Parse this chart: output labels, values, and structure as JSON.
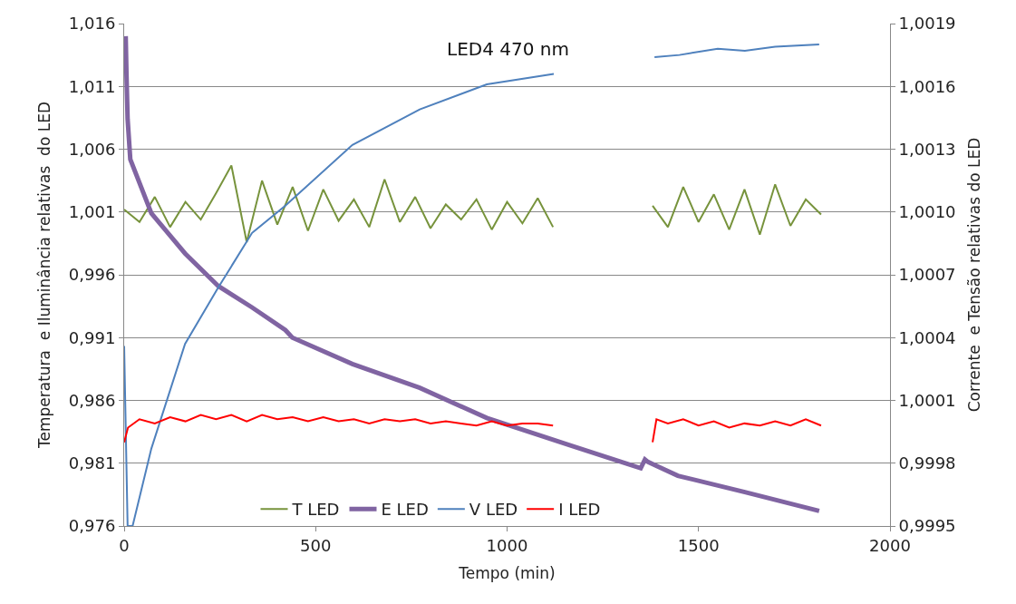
{
  "chart_data": {
    "type": "line",
    "title": "LED4 470 nm",
    "xlabel": "Tempo (min)",
    "ylabel": "Temperatura  e Iluminância relativas  do LED",
    "y2label": "Corrente  e Tensão relativas do LED",
    "xlim": [
      0,
      2000
    ],
    "xticks": [
      0,
      500,
      1000,
      1500,
      2000
    ],
    "ylim": [
      0.976,
      1.016
    ],
    "yticks": [
      {
        "value": 0.976,
        "label": "0,976"
      },
      {
        "value": 0.981,
        "label": "0,981"
      },
      {
        "value": 0.986,
        "label": "0,986"
      },
      {
        "value": 0.991,
        "label": "0,991"
      },
      {
        "value": 0.996,
        "label": "0,996"
      },
      {
        "value": 1.001,
        "label": "1,001"
      },
      {
        "value": 1.006,
        "label": "1,006"
      },
      {
        "value": 1.011,
        "label": "1,011"
      },
      {
        "value": 1.016,
        "label": "1,016"
      }
    ],
    "y2lim": [
      0.9995,
      1.0019
    ],
    "y2ticks": [
      {
        "value": 0.9995,
        "label": "0,9995"
      },
      {
        "value": 0.9998,
        "label": "0,9998"
      },
      {
        "value": 1.0001,
        "label": "1,0001"
      },
      {
        "value": 1.0004,
        "label": "1,0004"
      },
      {
        "value": 1.0007,
        "label": "1,0007"
      },
      {
        "value": 1.001,
        "label": "1,0010"
      },
      {
        "value": 1.0013,
        "label": "1,0013"
      },
      {
        "value": 1.0016,
        "label": "1,0016"
      },
      {
        "value": 1.0019,
        "label": "1,0019"
      }
    ],
    "grid": "y",
    "legend": "bottom",
    "marker": "none",
    "line_style": "solid",
    "series": [
      {
        "name": "T LED",
        "color": "#77933c",
        "x": [
          0,
          40,
          80,
          120,
          160,
          200,
          240,
          280,
          320,
          360,
          400,
          440,
          480,
          520,
          560,
          600,
          640,
          680,
          720,
          760,
          800,
          840,
          880,
          920,
          960,
          1000,
          1040,
          1080,
          1120,
          1250,
          1380,
          1420,
          1460,
          1500,
          1540,
          1580,
          1620,
          1660,
          1700,
          1740,
          1780,
          1820
        ],
        "values": [
          1.0012,
          1.0002,
          1.0022,
          0.9998,
          1.0018,
          1.0004,
          1.0025,
          1.0047,
          0.9986,
          1.0035,
          1.0,
          1.003,
          0.9995,
          1.0028,
          1.0003,
          1.002,
          0.9998,
          1.0036,
          1.0002,
          1.0022,
          0.9997,
          1.0016,
          1.0004,
          1.002,
          0.9996,
          1.0018,
          1.0001,
          1.0021,
          0.9998,
          null,
          1.0015,
          0.9998,
          1.003,
          1.0002,
          1.0024,
          0.9996,
          1.0028,
          0.9992,
          1.0032,
          0.9999,
          1.002,
          1.0008
        ]
      },
      {
        "name": "E LED",
        "color": "#8064a2",
        "x": [
          4,
          6,
          9,
          16,
          71,
          159,
          246,
          334,
          421,
          439,
          596,
          772,
          947,
          1167,
          1349,
          1360,
          1368,
          1446,
          1621,
          1815
        ],
        "values": [
          1.015,
          1.012,
          1.0084,
          1.0052,
          1.0009,
          0.9977,
          0.9951,
          0.9934,
          0.9916,
          0.991,
          0.9889,
          0.987,
          0.9846,
          0.9824,
          0.9806,
          0.9813,
          0.9811,
          0.98,
          0.9787,
          0.9772
        ]
      },
      {
        "name": "V LED",
        "color": "#4f81bd",
        "axis": "y2",
        "x": [
          0,
          9,
          22,
          71,
          159,
          246,
          334,
          421,
          596,
          772,
          947,
          1122,
          1250,
          1385,
          1450,
          1550,
          1621,
          1700,
          1815
        ],
        "values": [
          1.00036,
          0.9995,
          0.9995,
          0.99987,
          1.00037,
          1.00064,
          1.0009,
          1.00103,
          1.00132,
          1.00149,
          1.00161,
          1.00166,
          null,
          1.00174,
          1.00175,
          1.00178,
          1.00177,
          1.00179,
          1.0018
        ]
      },
      {
        "name": "I LED",
        "color": "#ff0000",
        "axis": "y2",
        "x": [
          0,
          10,
          40,
          80,
          120,
          160,
          200,
          240,
          280,
          320,
          360,
          400,
          440,
          480,
          520,
          560,
          600,
          640,
          680,
          720,
          760,
          800,
          840,
          880,
          920,
          960,
          1000,
          1040,
          1080,
          1120,
          1250,
          1380,
          1390,
          1420,
          1460,
          1500,
          1540,
          1580,
          1620,
          1660,
          1700,
          1740,
          1780,
          1820
        ],
        "values": [
          0.9999,
          0.99997,
          1.00001,
          0.99999,
          1.00002,
          1.0,
          1.00003,
          1.00001,
          1.00003,
          1.0,
          1.00003,
          1.00001,
          1.00002,
          1.0,
          1.00002,
          1.0,
          1.00001,
          0.99999,
          1.00001,
          1.0,
          1.00001,
          0.99999,
          1.0,
          0.99999,
          0.99998,
          1.0,
          0.99998,
          0.99999,
          0.99999,
          0.99998,
          null,
          0.9999,
          1.00001,
          0.99999,
          1.00001,
          0.99998,
          1.0,
          0.99997,
          0.99999,
          0.99998,
          1.0,
          0.99998,
          1.00001,
          0.99998
        ]
      }
    ]
  }
}
